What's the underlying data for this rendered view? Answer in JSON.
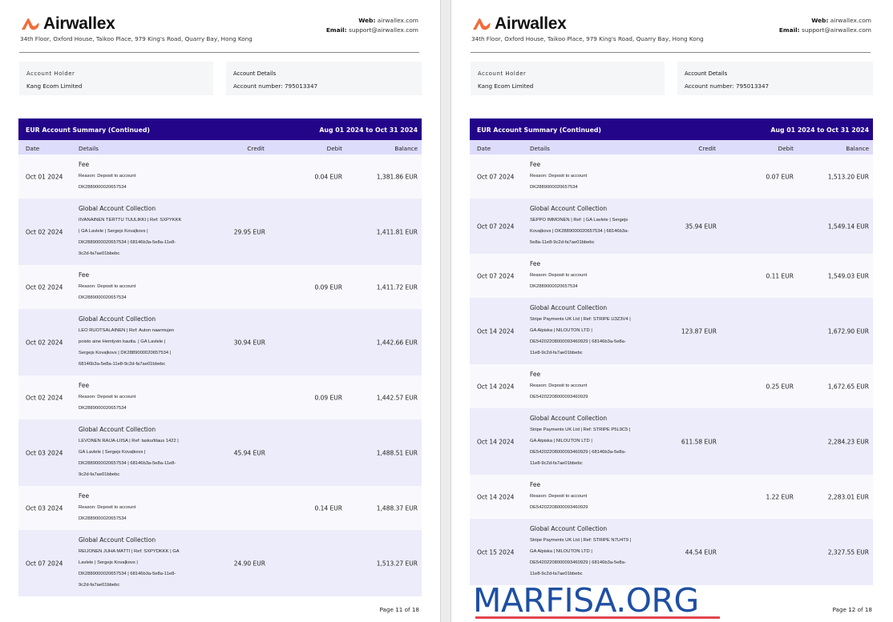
{
  "brand": {
    "name": "Airwallex",
    "logo_color": "#f26b3a",
    "accent": "#23058a",
    "column_header_bg": "#dedcfb"
  },
  "header": {
    "address": "34th Floor, Oxford House, Taikoo Place, 979 King's Road, Quarry Bay, Hong Kong",
    "web_label": "Web:",
    "web": "airwallex.com",
    "email_label": "Email:",
    "email": "support@airwallex.com"
  },
  "account": {
    "holder_label": "Account Holder",
    "holder": "Kang Ecom Limited",
    "details_label": "Account Details",
    "number_label": "Account number:",
    "number": "795013347"
  },
  "table": {
    "title": "EUR Account Summary (Continued)",
    "period": "Aug 01 2024 to Oct 31 2024",
    "columns": {
      "date": "Date",
      "details": "Details",
      "credit": "Credit",
      "debit": "Debit",
      "balance": "Balance"
    }
  },
  "pages": [
    {
      "footer": "Page 11 of 18",
      "rows": [
        {
          "date": "Oct 01 2024",
          "title": "Fee",
          "lines": [
            "Reason: Deposit to account",
            "DK2889000020657534"
          ],
          "credit": "",
          "debit": "0.04 EUR",
          "balance": "1,381.86 EUR"
        },
        {
          "date": "Oct 02 2024",
          "title": "Global Account Collection",
          "lines": [
            "IIVANAINEN TERTTU TUULIKKI | Ref: SXPYKKK",
            "| GA Lavlele | Sergejs Kovaļkovs |",
            "DK2889000020657534 | 68146b3a-5e8a-11e8-",
            "9c2d-fa7ae01bbebc"
          ],
          "credit": "29.95 EUR",
          "debit": "",
          "balance": "1,411.81 EUR"
        },
        {
          "date": "Oct 02 2024",
          "title": "Fee",
          "lines": [
            "Reason: Deposit to account",
            "DK2889000020657534"
          ],
          "credit": "",
          "debit": "0.09 EUR",
          "balance": "1,411.72 EUR"
        },
        {
          "date": "Oct 02 2024",
          "title": "Global Account Collection",
          "lines": [
            "LEO RUOTSALAINEN | Ref: Auton naarmujen",
            "poisto aine Hemlyxin kautta. | GA Lavlele |",
            "Sergejs Kovaļkovs | DK2889000020657534 |",
            "68146b3a-5e8a-11e8-9c2d-fa7ae01bbebc"
          ],
          "credit": "30.94 EUR",
          "debit": "",
          "balance": "1,442.66 EUR"
        },
        {
          "date": "Oct 02 2024",
          "title": "Fee",
          "lines": [
            "Reason: Deposit to account",
            "DK2889000020657534"
          ],
          "credit": "",
          "debit": "0.09 EUR",
          "balance": "1,442.57 EUR"
        },
        {
          "date": "Oct 03 2024",
          "title": "Global Account Collection",
          "lines": [
            "LEVONEN RAIJA-LIISA | Ref: lasku/tilaus 1422 |",
            "GA Lavlele | Sergejs Kovaļkovs |",
            "DK2889000020657534 | 68146b3a-5e8a-11e8-",
            "9c2d-fa7ae01bbebc"
          ],
          "credit": "45.94 EUR",
          "debit": "",
          "balance": "1,488.51 EUR"
        },
        {
          "date": "Oct 03 2024",
          "title": "Fee",
          "lines": [
            "Reason: Deposit to account",
            "DK2889000020657534"
          ],
          "credit": "",
          "debit": "0.14 EUR",
          "balance": "1,488.37 EUR"
        },
        {
          "date": "Oct 07 2024",
          "title": "Global Account Collection",
          "lines": [
            "REIJONEN JUHA MATTI | Ref: SXPYDKKK | GA",
            "Lavlele | Sergejs Kovaļkovs |",
            "DK2889000020657534 | 68146b3a-5e8a-11e8-",
            "9c2d-fa7ae01bbebc"
          ],
          "credit": "24.90 EUR",
          "debit": "",
          "balance": "1,513.27 EUR"
        }
      ]
    },
    {
      "footer": "Page 12 of 18",
      "rows": [
        {
          "date": "Oct 07 2024",
          "title": "Fee",
          "lines": [
            "Reason: Deposit to account",
            "DK2889000020657534"
          ],
          "credit": "",
          "debit": "0.07 EUR",
          "balance": "1,513.20 EUR"
        },
        {
          "date": "Oct 07 2024",
          "title": "Global Account Collection",
          "lines": [
            "SEPPO IMMONEN | Ref: | GA Lavlele | Sergejs",
            "Kovaļkovs | DK2889000020657534 | 68146b3a-",
            "5e8a-11e8-9c2d-fa7ae01bbebc"
          ],
          "credit": "35.94 EUR",
          "debit": "",
          "balance": "1,549.14 EUR"
        },
        {
          "date": "Oct 07 2024",
          "title": "Fee",
          "lines": [
            "Reason: Deposit to account",
            "DK2889000020657534"
          ],
          "credit": "",
          "debit": "0.11 EUR",
          "balance": "1,549.03 EUR"
        },
        {
          "date": "Oct 14 2024",
          "title": "Global Account Collection",
          "lines": [
            "Stripe Payments UK Ltd | Ref: STRIPE U3Z3V4 |",
            "GA Alpiska | NILOUTON LTD |",
            "DE54202208000093460929 | 68146b3a-5e8a-",
            "11e8-9c2d-fa7ae01bbebc"
          ],
          "credit": "123.87 EUR",
          "debit": "",
          "balance": "1,672.90 EUR"
        },
        {
          "date": "Oct 14 2024",
          "title": "Fee",
          "lines": [
            "Reason: Deposit to account",
            "DE54202208000093460929"
          ],
          "credit": "",
          "debit": "0.25 EUR",
          "balance": "1,672.65 EUR"
        },
        {
          "date": "Oct 14 2024",
          "title": "Global Account Collection",
          "lines": [
            "Stripe Payments UK Ltd | Ref: STRIPE P5L9C5 |",
            "GA Alpiska | NILOUTON LTD |",
            "DE54202208000093460929 | 68146b3a-5e8a-",
            "11e8-9c2d-fa7ae01bbebc"
          ],
          "credit": "611.58 EUR",
          "debit": "",
          "balance": "2,284.23 EUR"
        },
        {
          "date": "Oct 14 2024",
          "title": "Fee",
          "lines": [
            "Reason: Deposit to account",
            "DE54202208000093460929"
          ],
          "credit": "",
          "debit": "1.22 EUR",
          "balance": "2,283.01 EUR"
        },
        {
          "date": "Oct 15 2024",
          "title": "Global Account Collection",
          "lines": [
            "Stripe Payments UK Ltd | Ref: STRIPE N7U4T9 |",
            "GA Alpiska | NILOUTON LTD |",
            "DE54202208000093460929 | 68146b3a-5e8a-",
            "11e8-9c2d-fa7ae01bbebc"
          ],
          "credit": "44.54 EUR",
          "debit": "",
          "balance": "2,327.55 EUR"
        }
      ]
    }
  ],
  "watermark": {
    "text": "MARFISA.ORG",
    "text_color": "#1e4fa3",
    "bar_color": "#e2454f"
  }
}
